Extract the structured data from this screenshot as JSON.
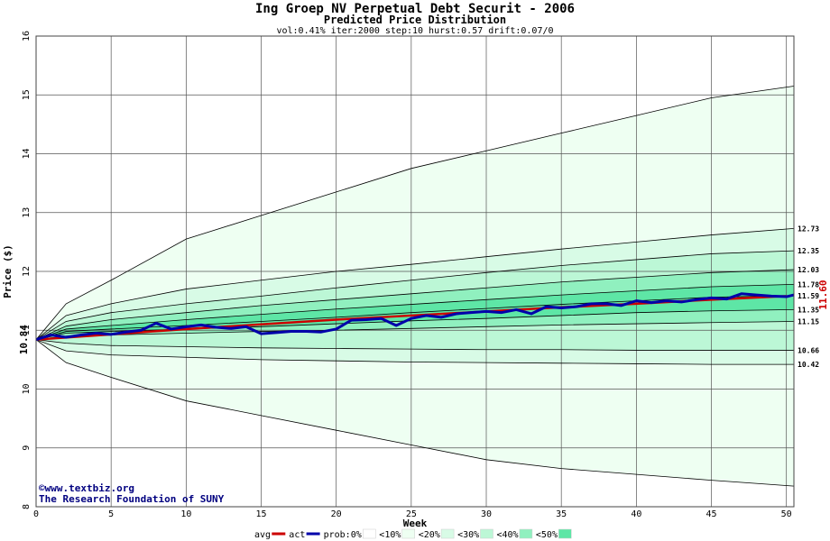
{
  "chart_data": {
    "type": "area",
    "title": "Ing Groep NV Perpetual Debt Securit - 2006",
    "subtitle": "Predicted Price Distribution",
    "params": "vol:0.41% iter:2000 step:10 hurst:0.57 drift:0.07/0",
    "xlabel": "Week",
    "ylabel": "Price ($)",
    "xlim": [
      0,
      50.5
    ],
    "ylim": [
      8,
      16
    ],
    "xticks": [
      0,
      5,
      10,
      15,
      20,
      25,
      30,
      35,
      40,
      45,
      50
    ],
    "yticks": [
      8,
      9,
      10,
      11,
      12,
      13,
      14,
      15,
      16
    ],
    "grid": true,
    "start_price": 10.84,
    "start_label": "10.84",
    "actual_last_label": "11.60",
    "band_colors": {
      "lt10": "#eefff2",
      "lt20": "#d8fbe6",
      "lt30": "#bcf7d6",
      "lt40": "#90f0bf",
      "lt50": "#5ee6a6"
    },
    "bands_weeks": [
      0,
      2,
      5,
      10,
      15,
      20,
      25,
      30,
      35,
      40,
      45,
      50.5
    ],
    "bands": {
      "p100_hi": [
        10.84,
        11.45,
        11.85,
        12.55,
        12.95,
        13.35,
        13.75,
        14.05,
        14.35,
        14.65,
        14.95,
        15.15
      ],
      "p80_hi": [
        10.84,
        11.25,
        11.45,
        11.7,
        11.85,
        12.0,
        12.12,
        12.25,
        12.38,
        12.5,
        12.62,
        12.73
      ],
      "p60_hi": [
        10.84,
        11.15,
        11.3,
        11.45,
        11.58,
        11.72,
        11.85,
        11.98,
        12.1,
        12.2,
        12.3,
        12.35
      ],
      "p40_hi": [
        10.84,
        11.07,
        11.18,
        11.3,
        11.42,
        11.52,
        11.62,
        11.72,
        11.82,
        11.9,
        11.98,
        12.03
      ],
      "p20_hi": [
        10.84,
        11.02,
        11.08,
        11.18,
        11.27,
        11.36,
        11.44,
        11.52,
        11.6,
        11.67,
        11.74,
        11.78
      ],
      "p0_hi": [
        10.84,
        10.98,
        11.02,
        11.08,
        11.15,
        11.22,
        11.3,
        11.37,
        11.44,
        11.5,
        11.56,
        11.59
      ],
      "p0_lo": [
        10.84,
        10.95,
        10.98,
        11.02,
        11.06,
        11.11,
        11.16,
        11.2,
        11.25,
        11.3,
        11.33,
        11.35
      ],
      "p20_lo": [
        10.84,
        10.9,
        10.92,
        10.95,
        10.98,
        11.0,
        11.03,
        11.06,
        11.09,
        11.11,
        11.13,
        11.15
      ],
      "p40_lo": [
        10.84,
        10.78,
        10.74,
        10.72,
        10.7,
        10.69,
        10.68,
        10.67,
        10.67,
        10.66,
        10.66,
        10.66
      ],
      "p60_lo": [
        10.84,
        10.65,
        10.58,
        10.54,
        10.5,
        10.48,
        10.46,
        10.45,
        10.44,
        10.43,
        10.42,
        10.42
      ],
      "p100_lo": [
        10.84,
        10.45,
        10.2,
        9.8,
        9.55,
        9.3,
        9.05,
        8.8,
        8.65,
        8.55,
        8.45,
        8.35
      ]
    },
    "right_labels": [
      "12.73",
      "12.35",
      "12.03",
      "11.78",
      "11.59",
      "11.35",
      "11.15",
      "10.66",
      "10.42"
    ],
    "avg_line": {
      "x": [
        0,
        5,
        10,
        15,
        20,
        25,
        30,
        35,
        40,
        45,
        50
      ],
      "y": [
        10.84,
        10.93,
        11.02,
        11.1,
        11.18,
        11.25,
        11.32,
        11.39,
        11.45,
        11.52,
        11.58
      ]
    },
    "actual_line": {
      "x": [
        0,
        1,
        2,
        3,
        4,
        5,
        6,
        7,
        8,
        9,
        10,
        11,
        12,
        13,
        14,
        15,
        16,
        17,
        18,
        19,
        20,
        21,
        22,
        23,
        24,
        25,
        26,
        27,
        28,
        29,
        30,
        31,
        32,
        33,
        34,
        35,
        36,
        37,
        38,
        39,
        40,
        41,
        42,
        43,
        44,
        45,
        46,
        47,
        48,
        49,
        50,
        50.5
      ],
      "y": [
        10.84,
        10.92,
        10.88,
        10.92,
        10.95,
        10.93,
        10.97,
        11.0,
        11.12,
        11.02,
        11.06,
        11.09,
        11.05,
        11.03,
        11.06,
        10.94,
        10.96,
        10.98,
        10.98,
        10.97,
        11.02,
        11.17,
        11.18,
        11.2,
        11.08,
        11.2,
        11.25,
        11.22,
        11.28,
        11.3,
        11.32,
        11.3,
        11.35,
        11.28,
        11.4,
        11.38,
        11.4,
        11.45,
        11.45,
        11.42,
        11.5,
        11.47,
        11.5,
        11.48,
        11.52,
        11.55,
        11.53,
        11.62,
        11.6,
        11.58,
        11.57,
        11.6
      ]
    },
    "legend": {
      "placement": "bottom",
      "items": [
        {
          "label": "avg",
          "swatch": "line",
          "color": "#cc0000"
        },
        {
          "label": "act",
          "swatch": "line",
          "color": "#0000aa"
        },
        {
          "label": "prob:0%",
          "swatch": "box",
          "color": "#ffffff"
        },
        {
          "label": "<10%",
          "swatch": "box",
          "color": "#eefff2"
        },
        {
          "label": "<20%",
          "swatch": "box",
          "color": "#d8fbe6"
        },
        {
          "label": "<30%",
          "swatch": "box",
          "color": "#bcf7d6"
        },
        {
          "label": "<40%",
          "swatch": "box",
          "color": "#90f0bf"
        },
        {
          "label": "<50%",
          "swatch": "box",
          "color": "#5ee6a6"
        }
      ]
    },
    "watermark_line1": "©www.textbiz.org",
    "watermark_line2": "The Research Foundation of SUNY"
  }
}
